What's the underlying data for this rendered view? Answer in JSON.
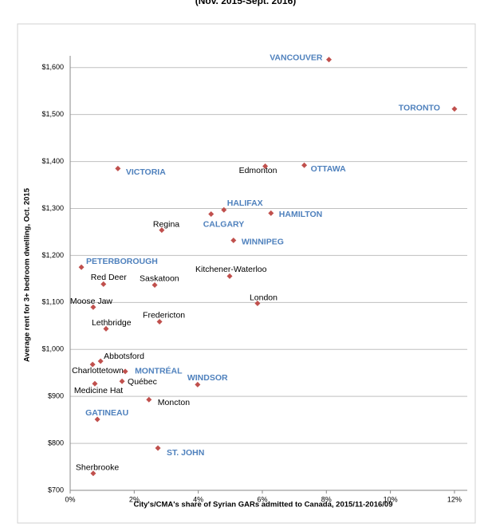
{
  "chart_data": {
    "type": "scatter",
    "subtitle": "(Nov. 2015-Sept. 2016)",
    "x_label": "City's/CMA's share of Syrian GARs admitted to Canada, 2015/11-2016/09",
    "y_label": "Average rent for 3+ bedroom dwelling, Oct. 2015",
    "xlim": [
      0,
      12.4
    ],
    "ylim": [
      700,
      1625
    ],
    "xticks": [
      {
        "value": 0,
        "label": "0%"
      },
      {
        "value": 2,
        "label": "2%"
      },
      {
        "value": 4,
        "label": "4%"
      },
      {
        "value": 6,
        "label": "6%"
      },
      {
        "value": 8,
        "label": "8%"
      },
      {
        "value": 10,
        "label": "10%"
      },
      {
        "value": 12,
        "label": "12%"
      }
    ],
    "yticks": [
      {
        "value": 700,
        "label": "$700"
      },
      {
        "value": 800,
        "label": "$800"
      },
      {
        "value": 900,
        "label": "$900"
      },
      {
        "value": 1000,
        "label": "$1,000"
      },
      {
        "value": 1100,
        "label": "$1,100"
      },
      {
        "value": 1200,
        "label": "$1,200"
      },
      {
        "value": 1300,
        "label": "$1,300"
      },
      {
        "value": 1400,
        "label": "$1,400"
      },
      {
        "value": 1500,
        "label": "$1,500"
      },
      {
        "value": 1600,
        "label": "$1,600"
      }
    ],
    "grid": true,
    "marker_color": "#c0504d",
    "points": [
      {
        "label": "VANCOUVER",
        "x": 8.08,
        "y": 1617,
        "label_color": "#4f81bd"
      },
      {
        "label": "TORONTO",
        "x": 12.0,
        "y": 1512,
        "label_color": "#4f81bd"
      },
      {
        "label": "VICTORIA",
        "x": 1.49,
        "y": 1385,
        "label_color": "#4f81bd"
      },
      {
        "label": "Edmonton",
        "x": 6.09,
        "y": 1390,
        "label_color": "#000000"
      },
      {
        "label": "OTTAWA",
        "x": 7.31,
        "y": 1392,
        "label_color": "#4f81bd"
      },
      {
        "label": "HALIFAX",
        "x": 4.8,
        "y": 1297,
        "label_color": "#4f81bd"
      },
      {
        "label": "CALGARY",
        "x": 4.4,
        "y": 1288,
        "label_color": "#4f81bd"
      },
      {
        "label": "HAMILTON",
        "x": 6.27,
        "y": 1290,
        "label_color": "#4f81bd"
      },
      {
        "label": "Regina",
        "x": 2.86,
        "y": 1254,
        "label_color": "#000000"
      },
      {
        "label": "WINNIPEG",
        "x": 5.1,
        "y": 1232,
        "label_color": "#4f81bd"
      },
      {
        "label": "PETERBOROUGH",
        "x": 0.35,
        "y": 1175,
        "label_color": "#4f81bd"
      },
      {
        "label": "Kitchener-Waterloo",
        "x": 4.98,
        "y": 1156,
        "label_color": "#000000"
      },
      {
        "label": "Red Deer",
        "x": 1.04,
        "y": 1139,
        "label_color": "#000000"
      },
      {
        "label": "Saskatoon",
        "x": 2.64,
        "y": 1137,
        "label_color": "#000000"
      },
      {
        "label": "London",
        "x": 5.85,
        "y": 1098,
        "label_color": "#000000"
      },
      {
        "label": "Moose Jaw",
        "x": 0.72,
        "y": 1090,
        "label_color": "#000000"
      },
      {
        "label": "Fredericton",
        "x": 2.79,
        "y": 1059,
        "label_color": "#000000"
      },
      {
        "label": "Lethbridge",
        "x": 1.12,
        "y": 1044,
        "label_color": "#000000"
      },
      {
        "label": "Abbotsford",
        "x": 0.95,
        "y": 975,
        "label_color": "#000000"
      },
      {
        "label": "Charlottetown",
        "x": 0.7,
        "y": 968,
        "label_color": "#000000"
      },
      {
        "label": "MONTRÉAL",
        "x": 1.72,
        "y": 953,
        "label_color": "#4f81bd"
      },
      {
        "label": "Québec",
        "x": 1.62,
        "y": 932,
        "label_color": "#000000"
      },
      {
        "label": "Medicine Hat",
        "x": 0.77,
        "y": 927,
        "label_color": "#000000"
      },
      {
        "label": "WINDSOR",
        "x": 3.98,
        "y": 925,
        "label_color": "#4f81bd"
      },
      {
        "label": "Moncton",
        "x": 2.46,
        "y": 893,
        "label_color": "#000000"
      },
      {
        "label": "GATINEAU",
        "x": 0.85,
        "y": 851,
        "label_color": "#4f81bd"
      },
      {
        "label": "ST. JOHN",
        "x": 2.74,
        "y": 790,
        "label_color": "#4f81bd"
      },
      {
        "label": "Sherbrooke",
        "x": 0.72,
        "y": 736,
        "label_color": "#000000"
      }
    ]
  }
}
